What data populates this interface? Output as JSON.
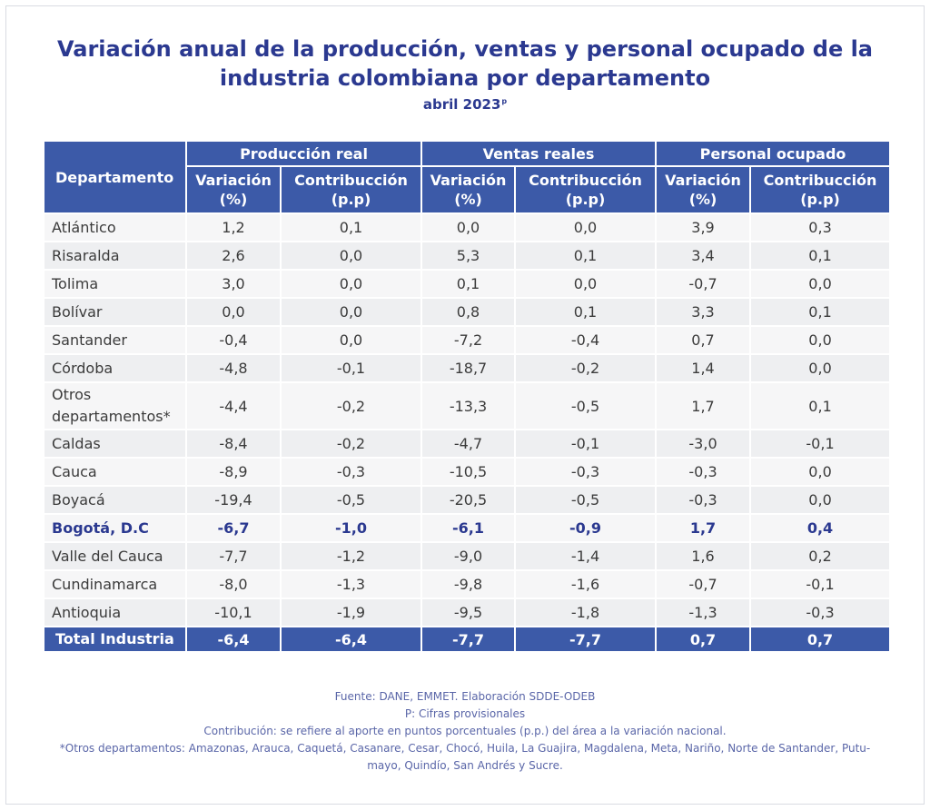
{
  "title": "Variación anual de la producción, ventas y personal ocupado de la industria colombiana por departamento",
  "subtitle": "abril 2023",
  "subtitle_sup": "p",
  "table": {
    "header_department": "Departamento",
    "groups": [
      "Producción real",
      "Ventas reales",
      "Personal ocupado"
    ],
    "sub_variacion": "Variación (%)",
    "sub_contribucion": "Contribucción (p.p)",
    "rows": [
      {
        "name": "Atlántico",
        "v": [
          "1,2",
          "0,1",
          "0,0",
          "0,0",
          "3,9",
          "0,3"
        ]
      },
      {
        "name": "Risaralda",
        "v": [
          "2,6",
          "0,0",
          "5,3",
          "0,1",
          "3,4",
          "0,1"
        ]
      },
      {
        "name": "Tolima",
        "v": [
          "3,0",
          "0,0",
          "0,1",
          "0,0",
          "-0,7",
          "0,0"
        ]
      },
      {
        "name": "Bolívar",
        "v": [
          "0,0",
          "0,0",
          "0,8",
          "0,1",
          "3,3",
          "0,1"
        ]
      },
      {
        "name": "Santander",
        "v": [
          "-0,4",
          "0,0",
          "-7,2",
          "-0,4",
          "0,7",
          "0,0"
        ]
      },
      {
        "name": "Córdoba",
        "v": [
          "-4,8",
          "-0,1",
          "-18,7",
          "-0,2",
          "1,4",
          "0,0"
        ]
      },
      {
        "name": "Otros departamentos*",
        "v": [
          "-4,4",
          "-0,2",
          "-13,3",
          "-0,5",
          "1,7",
          "0,1"
        ]
      },
      {
        "name": "Caldas",
        "v": [
          "-8,4",
          "-0,2",
          "-4,7",
          "-0,1",
          "-3,0",
          "-0,1"
        ]
      },
      {
        "name": "Cauca",
        "v": [
          "-8,9",
          "-0,3",
          "-10,5",
          "-0,3",
          "-0,3",
          "0,0"
        ]
      },
      {
        "name": "Boyacá",
        "v": [
          "-19,4",
          "-0,5",
          "-20,5",
          "-0,5",
          "-0,3",
          "0,0"
        ]
      },
      {
        "name": "Bogotá, D.C",
        "v": [
          "-6,7",
          "-1,0",
          "-6,1",
          "-0,9",
          "1,7",
          "0,4"
        ]
      },
      {
        "name": "Valle del Cauca",
        "v": [
          "-7,7",
          "-1,2",
          "-9,0",
          "-1,4",
          "1,6",
          "0,2"
        ]
      },
      {
        "name": "Cundinamarca",
        "v": [
          "-8,0",
          "-1,3",
          "-9,8",
          "-1,6",
          "-0,7",
          "-0,1"
        ]
      },
      {
        "name": "Antioquia",
        "v": [
          "-10,1",
          "-1,9",
          "-9,5",
          "-1,8",
          "-1,3",
          "-0,3"
        ]
      }
    ],
    "total": {
      "name": "Total Industria",
      "v": [
        "-6,4",
        "-6,4",
        "-7,7",
        "-7,7",
        "0,7",
        "0,7"
      ]
    }
  },
  "notes": [
    "Fuente: DANE, EMMET. Elaboración SDDE-ODEB",
    "P: Cifras provisionales",
    "Contribución: se refiere al aporte en puntos porcentuales (p.p.) del área a la variación nacional.",
    "*Otros departamentos: Amazonas, Arauca, Caquetá, Casanare, Cesar, Chocó, Huila, La Guajira, Magdalena, Meta, Nariño, Norte de Santander, Putu-",
    "mayo, Quindío, San Andrés y Sucre."
  ],
  "colors": {
    "brand": "#2b3990",
    "header_fill": "#3c5aa8",
    "row_fill": "#f6f6f7"
  }
}
